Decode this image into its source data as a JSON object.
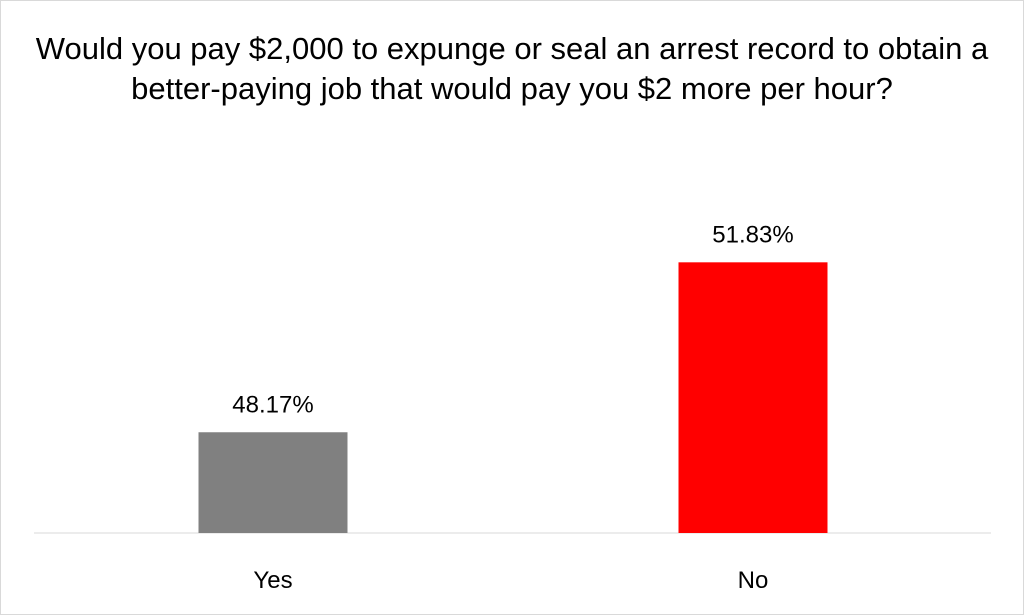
{
  "chart_data": {
    "type": "bar",
    "title": "Would you pay $2,000 to expunge or seal an arrest record to obtain a better-paying job that would pay you $2 more per hour?",
    "categories": [
      "Yes",
      "No"
    ],
    "values": [
      48.17,
      51.83
    ],
    "data_labels": [
      "48.17%",
      "51.83%"
    ],
    "colors": [
      "#808080",
      "#ff0000"
    ],
    "xlabel": "",
    "ylabel": "",
    "ylim": [
      46,
      53
    ],
    "grid": false,
    "legend": "none"
  }
}
